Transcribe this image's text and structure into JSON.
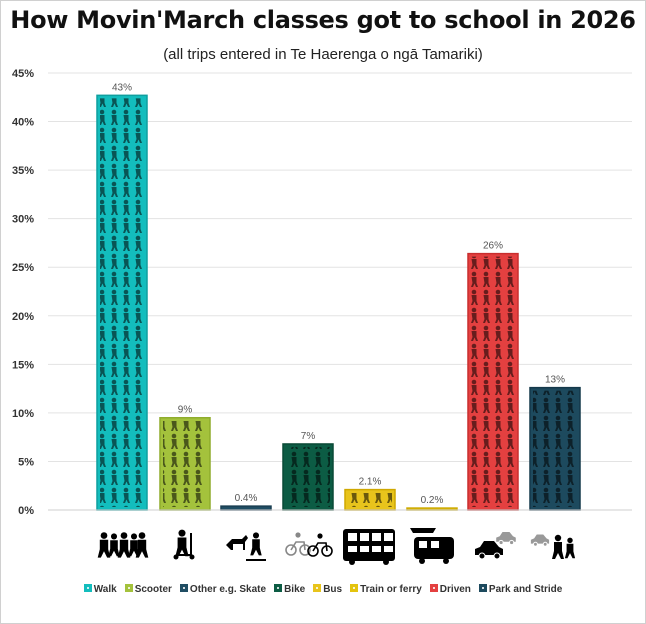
{
  "chart_data": {
    "type": "bar",
    "title": "How Movin'March classes got to school in 2026",
    "subtitle": "(all trips entered in Te Haerenga o ngā Tamariki)",
    "categories": [
      "Walk",
      "Scooter",
      "Other e.g. Skate",
      "Bike",
      "Bus",
      "Train or ferry",
      "Driven",
      "Park and Stride"
    ],
    "values": [
      42.7,
      9.5,
      0.4,
      6.8,
      2.1,
      0.2,
      26.4,
      12.6
    ],
    "data_labels": [
      "43%",
      "9%",
      "0.4%",
      "7%",
      "2.1%",
      "0.2%",
      "26%",
      "13%"
    ],
    "colors": [
      "#13bdbd",
      "#a4c23c",
      "#1f4d63",
      "#0c5c44",
      "#e8c41c",
      "#e4c40e",
      "#e44040",
      "#1d4a5e"
    ],
    "border_colors": [
      "#0f9f9f",
      "#8fac2c",
      "#1a3f52",
      "#0a4a36",
      "#cfa800",
      "#cda900",
      "#c82e2e",
      "#14384a"
    ],
    "icon_names": [
      "walking-group-icon",
      "scooter-icon",
      "horse-skateboard-icon",
      "bikes-icon",
      "bus-icon",
      "train-ferry-icon",
      "car-icon",
      "park-and-stride-icon"
    ],
    "ylim": [
      0,
      45
    ],
    "y_ticks": [
      "0%",
      "5%",
      "10%",
      "15%",
      "20%",
      "25%",
      "30%",
      "35%",
      "40%",
      "45%"
    ],
    "xlabel": "",
    "ylabel": "",
    "grid": true,
    "legend_position": "bottom"
  }
}
